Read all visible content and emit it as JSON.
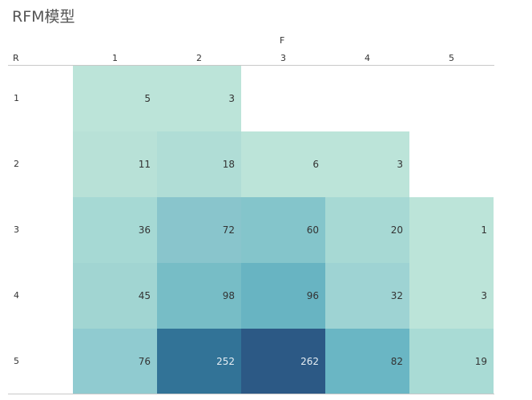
{
  "title": "RFM模型",
  "axes": {
    "column_header": "F",
    "row_header": "R"
  },
  "columns": [
    "1",
    "2",
    "3",
    "4",
    "5"
  ],
  "rows": [
    "1",
    "2",
    "3",
    "4",
    "5"
  ],
  "chart_data": {
    "type": "heatmap",
    "title": "RFM模型",
    "xlabel": "F",
    "ylabel": "R",
    "x": [
      "1",
      "2",
      "3",
      "4",
      "5"
    ],
    "y": [
      "1",
      "2",
      "3",
      "4",
      "5"
    ],
    "values": [
      [
        5,
        3,
        null,
        null,
        null
      ],
      [
        11,
        18,
        6,
        3,
        null
      ],
      [
        36,
        72,
        60,
        20,
        1
      ],
      [
        45,
        98,
        96,
        32,
        3
      ],
      [
        76,
        252,
        262,
        82,
        19
      ]
    ],
    "color_scale": {
      "low": "#bce4d9",
      "high": "#2c5985"
    }
  },
  "cells": [
    {
      "r": 0,
      "c": 0,
      "v": "5",
      "bg": "#bce4d9",
      "fg": "#333333"
    },
    {
      "r": 0,
      "c": 1,
      "v": "3",
      "bg": "#bce4d9",
      "fg": "#333333"
    },
    {
      "r": 1,
      "c": 0,
      "v": "11",
      "bg": "#b8e1d7",
      "fg": "#333333"
    },
    {
      "r": 1,
      "c": 1,
      "v": "18",
      "bg": "#b0ddd6",
      "fg": "#333333"
    },
    {
      "r": 1,
      "c": 2,
      "v": "6",
      "bg": "#bce4d9",
      "fg": "#333333"
    },
    {
      "r": 1,
      "c": 3,
      "v": "3",
      "bg": "#bce4d9",
      "fg": "#333333"
    },
    {
      "r": 2,
      "c": 0,
      "v": "36",
      "bg": "#a6d9d4",
      "fg": "#333333"
    },
    {
      "r": 2,
      "c": 1,
      "v": "72",
      "bg": "#89c5cc",
      "fg": "#333333"
    },
    {
      "r": 2,
      "c": 2,
      "v": "60",
      "bg": "#84c5cb",
      "fg": "#333333"
    },
    {
      "r": 2,
      "c": 3,
      "v": "20",
      "bg": "#a7d9d4",
      "fg": "#333333"
    },
    {
      "r": 2,
      "c": 4,
      "v": "1",
      "bg": "#bce4d9",
      "fg": "#333333"
    },
    {
      "r": 3,
      "c": 0,
      "v": "45",
      "bg": "#a1d5d2",
      "fg": "#333333"
    },
    {
      "r": 3,
      "c": 1,
      "v": "98",
      "bg": "#77bdc6",
      "fg": "#333333"
    },
    {
      "r": 3,
      "c": 2,
      "v": "96",
      "bg": "#68b4c2",
      "fg": "#333333"
    },
    {
      "r": 3,
      "c": 3,
      "v": "32",
      "bg": "#9ed3d3",
      "fg": "#333333"
    },
    {
      "r": 3,
      "c": 4,
      "v": "3",
      "bg": "#bce4d9",
      "fg": "#333333"
    },
    {
      "r": 4,
      "c": 0,
      "v": "76",
      "bg": "#90cbd0",
      "fg": "#333333"
    },
    {
      "r": 4,
      "c": 1,
      "v": "252",
      "bg": "#327397",
      "fg": "#e6eef4"
    },
    {
      "r": 4,
      "c": 2,
      "v": "262",
      "bg": "#2c5985",
      "fg": "#e6eef4"
    },
    {
      "r": 4,
      "c": 3,
      "v": "82",
      "bg": "#6ab6c4",
      "fg": "#333333"
    },
    {
      "r": 4,
      "c": 4,
      "v": "19",
      "bg": "#a9dbd5",
      "fg": "#333333"
    }
  ]
}
